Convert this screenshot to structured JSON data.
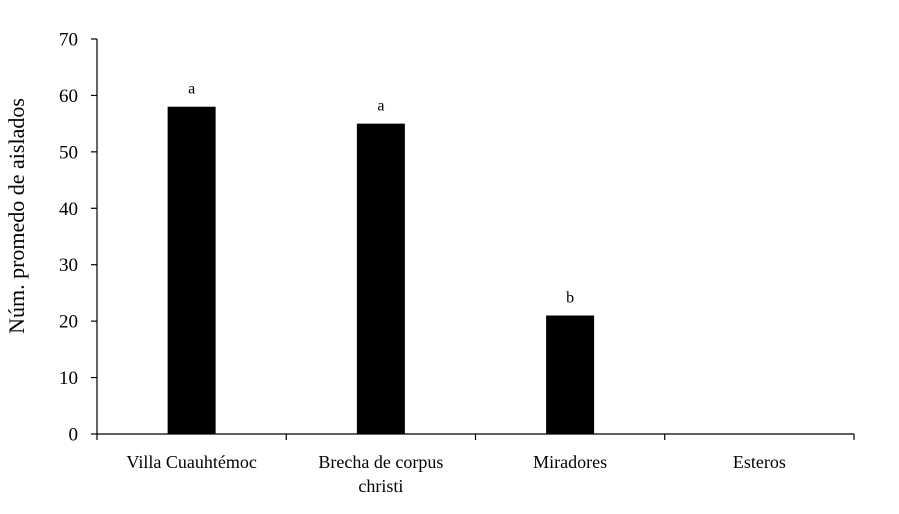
{
  "chart_data": {
    "type": "bar",
    "title": "",
    "xlabel": "",
    "ylabel": "Núm. promedo de aislados",
    "ylim": [
      0,
      70
    ],
    "yticks": [
      "0",
      "10",
      "20",
      "30",
      "40",
      "50",
      "60",
      "70"
    ],
    "categories": [
      [
        "Villa Cuauhtémoc"
      ],
      [
        "Brecha de corpus",
        "christi"
      ],
      [
        "Miradores"
      ],
      [
        "Esteros"
      ]
    ],
    "values": [
      58,
      55,
      21,
      0
    ],
    "data_labels": [
      "a",
      "a",
      "b",
      ""
    ],
    "bar_color": "#000000",
    "grid": false,
    "legend": "none"
  }
}
